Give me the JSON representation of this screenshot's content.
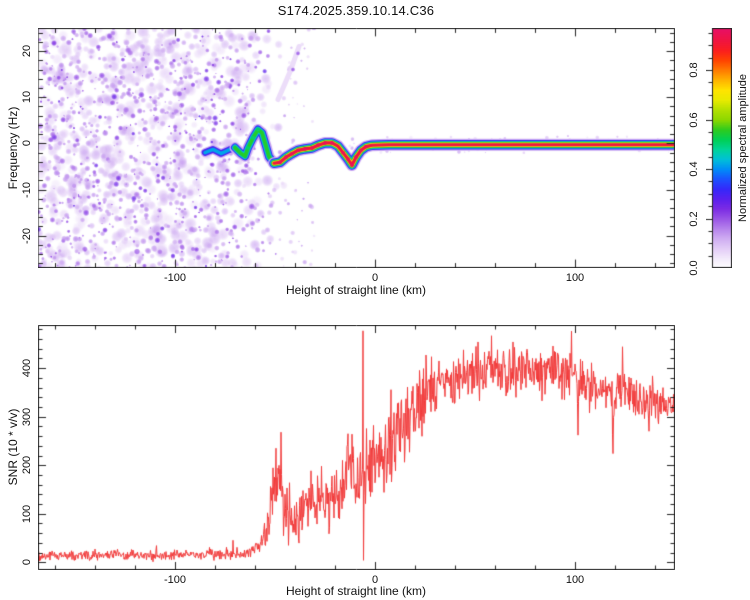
{
  "title": "S174.2025.359.10.14.C36",
  "chart_data": [
    {
      "type": "heatmap",
      "name": "spectrogram",
      "xlabel": "Height of straight line (km)",
      "ylabel": "Frequency (Hz)",
      "xlim": [
        -168.5,
        150
      ],
      "ylim": [
        -27,
        25
      ],
      "xticks": [
        {
          "v": -100,
          "label": "-100"
        },
        {
          "v": 0,
          "label": "0"
        },
        {
          "v": 100,
          "label": "100"
        }
      ],
      "yticks": [
        {
          "v": 20,
          "label": "20"
        },
        {
          "v": 10,
          "label": "10"
        },
        {
          "v": 0,
          "label": "0"
        },
        {
          "v": -10,
          "label": "-10"
        },
        {
          "v": -20,
          "label": "-20"
        }
      ],
      "minor_x_step": 20,
      "minor_y_step": 2,
      "major_x_step": 100,
      "major_y_step": 10,
      "colormap_stops": [
        [
          0.0,
          "#ffffff"
        ],
        [
          0.04,
          "#f3eafb"
        ],
        [
          0.08,
          "#e3cdf7"
        ],
        [
          0.12,
          "#d0adf2"
        ],
        [
          0.16,
          "#b683ec"
        ],
        [
          0.2,
          "#9a55e6"
        ],
        [
          0.24,
          "#7c2ce4"
        ],
        [
          0.28,
          "#5a20ee"
        ],
        [
          0.32,
          "#3528fa"
        ],
        [
          0.36,
          "#1c52ff"
        ],
        [
          0.4,
          "#008cf8"
        ],
        [
          0.44,
          "#00c0d8"
        ],
        [
          0.48,
          "#00d49a"
        ],
        [
          0.52,
          "#00d055"
        ],
        [
          0.56,
          "#2ecb1e"
        ],
        [
          0.6,
          "#8cd800"
        ],
        [
          0.64,
          "#b2e000"
        ],
        [
          0.68,
          "#e8ea00"
        ],
        [
          0.72,
          "#ffe400"
        ],
        [
          0.76,
          "#ffb400"
        ],
        [
          0.8,
          "#ff7c00"
        ],
        [
          0.84,
          "#ff4400"
        ],
        [
          0.88,
          "#fb1e1e"
        ],
        [
          0.92,
          "#f01440"
        ],
        [
          0.96,
          "#e91060"
        ],
        [
          1.0,
          "#e50e70"
        ]
      ],
      "colorbar": {
        "label": "Normalized spectral amplitude",
        "vmax": 0.97,
        "ticks": [
          {
            "v": 0.0,
            "label": "0.0"
          },
          {
            "v": 0.2,
            "label": "0.2"
          },
          {
            "v": 0.4,
            "label": "0.4"
          },
          {
            "v": 0.6,
            "label": "0.6"
          },
          {
            "v": 0.8,
            "label": "0.8"
          }
        ],
        "minor_step": 0.05
      },
      "ridge_trace_km_hz": [
        [
          -85,
          -2.0
        ],
        [
          -81,
          -1.3
        ],
        [
          -77,
          -2.2
        ],
        [
          -73,
          -1.4
        ],
        [
          -70,
          -0.9
        ],
        [
          -67,
          -2.2
        ],
        [
          -65,
          -2.8
        ],
        [
          -63.5,
          -1.0
        ],
        [
          -61,
          1.2
        ],
        [
          -58.5,
          3.0
        ],
        [
          -56.5,
          2.3
        ],
        [
          -54.5,
          -0.6
        ],
        [
          -53,
          -2.9
        ],
        [
          -50.5,
          -4.3
        ],
        [
          -47.5,
          -4.1
        ],
        [
          -44.5,
          -3.0
        ],
        [
          -41.5,
          -2.2
        ],
        [
          -38.5,
          -1.5
        ],
        [
          -35,
          -1.2
        ],
        [
          -31.5,
          -1.0
        ],
        [
          -28.5,
          -0.4
        ],
        [
          -25,
          0.1
        ],
        [
          -21.5,
          0.1
        ],
        [
          -18.5,
          -0.6
        ],
        [
          -16,
          -2.0
        ],
        [
          -13.5,
          -3.4
        ],
        [
          -11.5,
          -4.7
        ],
        [
          -9.5,
          -3.0
        ],
        [
          -7,
          -1.5
        ],
        [
          -4.5,
          -0.7
        ],
        [
          -1.5,
          -0.4
        ],
        [
          2.5,
          -0.35
        ],
        [
          7,
          -0.3
        ],
        [
          150,
          -0.3
        ]
      ],
      "ridge_segments": [
        {
          "until": -69,
          "layers": [
            [
              9,
              0.12
            ],
            [
              6.5,
              0.3
            ],
            [
              3.5,
              0.42
            ]
          ]
        },
        {
          "until": -48,
          "layers": [
            [
              11,
              0.12
            ],
            [
              8,
              0.32
            ],
            [
              6,
              0.44
            ],
            [
              3.8,
              0.55
            ]
          ]
        },
        {
          "until": 151,
          "layers": [
            [
              12,
              0.12
            ],
            [
              9.5,
              0.32
            ],
            [
              7.5,
              0.44
            ],
            [
              6,
              0.55
            ],
            [
              4.6,
              0.7
            ],
            [
              3.2,
              0.92
            ]
          ]
        }
      ],
      "red_beads": [
        [
          -47.5,
          -4.1
        ],
        [
          -44.5,
          -3.0
        ],
        [
          -41.5,
          -2.2
        ],
        [
          -38.5,
          -1.5
        ],
        [
          -35,
          -1.2
        ],
        [
          -31.5,
          -1.0
        ],
        [
          -28.5,
          -0.4
        ],
        [
          -25,
          0.1
        ],
        [
          -21.5,
          0.1
        ],
        [
          -16,
          -2.0
        ],
        [
          -13.5,
          -3.4
        ],
        [
          -11.5,
          -4.7
        ],
        [
          -9.5,
          -3.0
        ],
        [
          -7,
          -1.5
        ],
        [
          -4.5,
          -0.7
        ]
      ],
      "green_beads": [
        [
          -63.5,
          -1.0
        ],
        [
          -61,
          1.2
        ],
        [
          -58.5,
          3.0
        ]
      ],
      "wisp_km_hz": [
        [
          -48.5,
          9.5
        ],
        [
          -45,
          13
        ],
        [
          -42.5,
          15.5
        ],
        [
          -40,
          18.5
        ],
        [
          -38,
          21
        ]
      ],
      "wisp_dots": [
        [
          -38.5,
          19.5
        ],
        [
          -41,
          16
        ]
      ],
      "noise": {
        "seed": 1337,
        "x_full_until": -72,
        "x_fade_until": -45,
        "large_attempts": 820,
        "small_attempts": 950,
        "straggler_attempts": 55,
        "band_speckle_attempts": 95
      }
    },
    {
      "type": "line",
      "name": "snr",
      "color": "#f23b3b",
      "xlabel": "Height of straight line (km)",
      "ylabel": "SNR (10 * v/v)",
      "xlim": [
        -168.5,
        150
      ],
      "ylim": [
        -16,
        489
      ],
      "xticks": [
        {
          "v": -100,
          "label": "-100"
        },
        {
          "v": 0,
          "label": "0"
        },
        {
          "v": 100,
          "label": "100"
        }
      ],
      "yticks": [
        {
          "v": 0,
          "label": "0"
        },
        {
          "v": 100,
          "label": "100"
        },
        {
          "v": 200,
          "label": "200"
        },
        {
          "v": 300,
          "label": "300"
        },
        {
          "v": 400,
          "label": "400"
        }
      ],
      "minor_x_step": 20,
      "minor_y_step": 20,
      "major_x_step": 100,
      "major_y_step": 100,
      "seed": 77,
      "step_km": 0.25,
      "envelope_x_mean_amp": [
        [
          -168.5,
          14,
          9
        ],
        [
          -150,
          14,
          9
        ],
        [
          -130,
          15,
          10
        ],
        [
          -110,
          14,
          9
        ],
        [
          -95,
          15,
          9
        ],
        [
          -85,
          16,
          10
        ],
        [
          -75,
          17,
          10
        ],
        [
          -68,
          18,
          11
        ],
        [
          -62,
          22,
          13
        ],
        [
          -58,
          32,
          18
        ],
        [
          -55,
          55,
          35
        ],
        [
          -52,
          110,
          80
        ],
        [
          -49,
          160,
          100
        ],
        [
          -46,
          150,
          95
        ],
        [
          -43,
          95,
          55
        ],
        [
          -40,
          90,
          45
        ],
        [
          -36,
          105,
          45
        ],
        [
          -32,
          115,
          45
        ],
        [
          -28,
          125,
          48
        ],
        [
          -24,
          130,
          52
        ],
        [
          -20,
          148,
          60
        ],
        [
          -16,
          168,
          70
        ],
        [
          -13,
          180,
          78
        ],
        [
          -10,
          175,
          85
        ],
        [
          -7,
          165,
          88
        ],
        [
          -4,
          180,
          85
        ],
        [
          -1,
          205,
          82
        ],
        [
          2,
          220,
          80
        ],
        [
          5,
          240,
          78
        ],
        [
          8,
          252,
          75
        ],
        [
          11,
          262,
          78
        ],
        [
          14,
          280,
          72
        ],
        [
          17,
          298,
          70
        ],
        [
          20,
          312,
          68
        ],
        [
          23,
          328,
          64
        ],
        [
          26,
          340,
          62
        ],
        [
          30,
          352,
          60
        ],
        [
          34,
          364,
          56
        ],
        [
          38,
          374,
          54
        ],
        [
          42,
          379,
          52
        ],
        [
          47,
          383,
          50
        ],
        [
          52,
          387,
          50
        ],
        [
          58,
          391,
          48
        ],
        [
          65,
          394,
          48
        ],
        [
          72,
          396,
          48
        ],
        [
          80,
          395,
          50
        ],
        [
          88,
          392,
          48
        ],
        [
          95,
          387,
          46
        ],
        [
          100,
          380,
          46
        ],
        [
          105,
          368,
          46
        ],
        [
          110,
          358,
          44
        ],
        [
          115,
          350,
          43
        ],
        [
          120,
          346,
          42
        ],
        [
          125,
          349,
          41
        ],
        [
          130,
          344,
          40
        ],
        [
          135,
          339,
          38
        ],
        [
          140,
          331,
          36
        ],
        [
          145,
          324,
          33
        ],
        [
          150,
          316,
          30
        ]
      ],
      "events": [
        {
          "type": "spike",
          "x": -6,
          "hi": 477,
          "lo": 4
        },
        {
          "type": "peak",
          "x": -47,
          "v": 268
        },
        {
          "type": "peak",
          "x": -49.5,
          "v": 235
        },
        {
          "type": "dip",
          "x": 101.5,
          "v": 262
        },
        {
          "type": "dip",
          "x": 119,
          "v": 224
        },
        {
          "type": "dip",
          "x": 137,
          "v": 270
        }
      ]
    }
  ],
  "frame_color": "#222222"
}
